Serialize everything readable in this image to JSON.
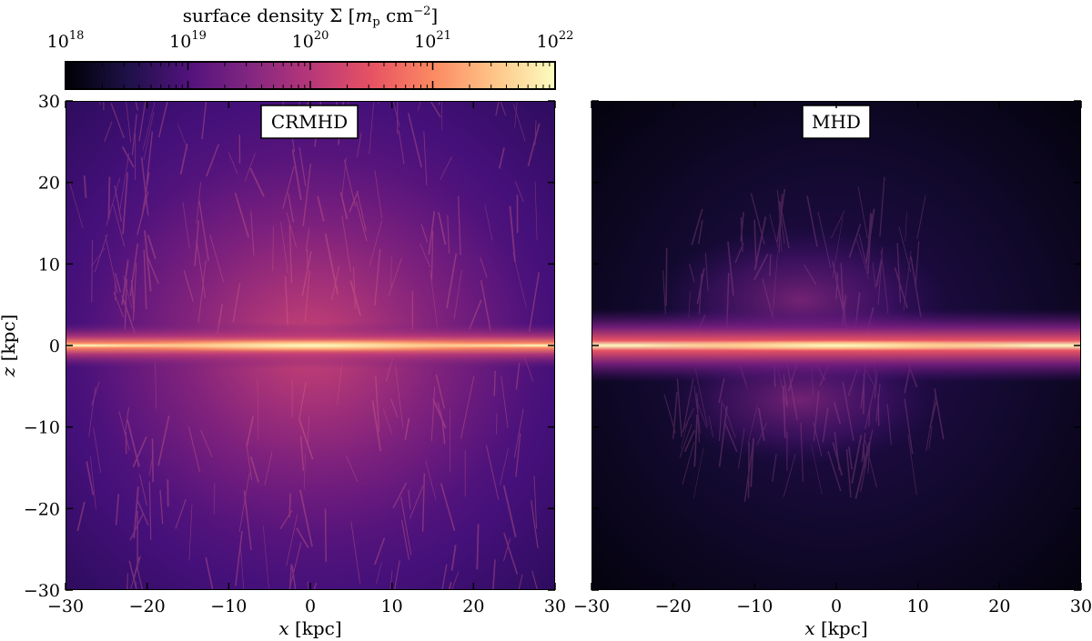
{
  "chart_data": {
    "type": "heatmap",
    "colorbar": {
      "label": "surface density Σ [m_p cm⁻²]",
      "label_parts": {
        "prefix": "surface density Σ [",
        "var": "m",
        "sub": "p",
        "unit": " cm",
        "exp": "−2",
        "suffix": "]"
      },
      "scale": "log",
      "range": [
        1e+18,
        1e+22
      ],
      "tick_base": "10",
      "tick_exponents": [
        "18",
        "19",
        "20",
        "21",
        "22"
      ],
      "colormap": "magma",
      "colormap_stops": [
        "#000004",
        "#1d1147",
        "#51127c",
        "#822681",
        "#b73779",
        "#e75263",
        "#fc8961",
        "#fec488",
        "#fcfdbf"
      ]
    },
    "panels": [
      {
        "label": "CRMHD",
        "xlabel_var": "x",
        "xlabel_unit": " [kpc]",
        "ylabel_var": "z",
        "ylabel_unit": " [kpc]",
        "xlim": [
          -30,
          30
        ],
        "ylim": [
          -30,
          30
        ],
        "x_ticks": [
          "−30",
          "−20",
          "−10",
          "0",
          "10",
          "20",
          "30"
        ],
        "y_ticks": [
          "30",
          "20",
          "10",
          "0",
          "−10",
          "−20",
          "−30"
        ],
        "disk": {
          "center_z": 0,
          "thickness_kpc": 4,
          "radial_extent_kpc": 30,
          "peak_log_sigma": 22
        },
        "halo": {
          "vertical_extent_kpc": 30,
          "typical_log_sigma": 19.3
        }
      },
      {
        "label": "MHD",
        "xlabel_var": "x",
        "xlabel_unit": " [kpc]",
        "xlim": [
          -30,
          30
        ],
        "ylim": [
          -30,
          30
        ],
        "x_ticks": [
          "−30",
          "−20",
          "−10",
          "0",
          "10",
          "20",
          "30"
        ],
        "disk": {
          "center_z": 0,
          "thickness_kpc": 6,
          "radial_extent_kpc": 30,
          "peak_log_sigma": 22
        },
        "halo": {
          "vertical_extent_kpc": 15,
          "typical_log_sigma": 18.6
        }
      }
    ]
  }
}
